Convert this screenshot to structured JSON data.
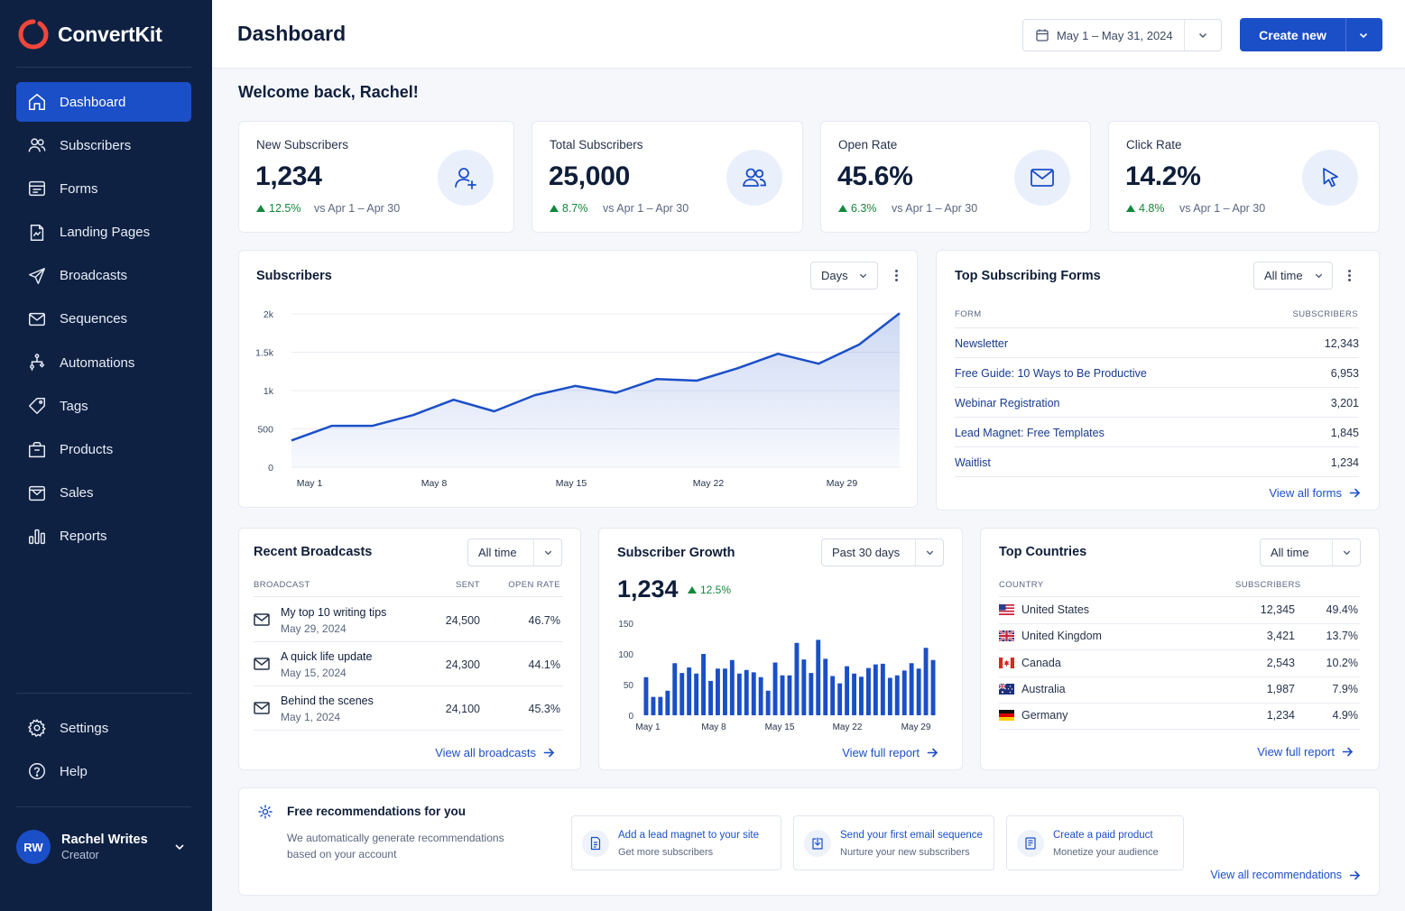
{
  "brand": {
    "name": "ConvertKit"
  },
  "sidebar": {
    "items": [
      {
        "label": "Dashboard",
        "icon": "home-icon",
        "active": true
      },
      {
        "label": "Subscribers",
        "icon": "users-icon"
      },
      {
        "label": "Forms",
        "icon": "form-icon"
      },
      {
        "label": "Landing Pages",
        "icon": "landing-page-icon"
      },
      {
        "label": "Broadcasts",
        "icon": "send-icon"
      },
      {
        "label": "Sequences",
        "icon": "mail-icon"
      },
      {
        "label": "Automations",
        "icon": "automation-icon"
      },
      {
        "label": "Tags",
        "icon": "tag-icon"
      },
      {
        "label": "Products",
        "icon": "product-icon"
      },
      {
        "label": "Sales",
        "icon": "sales-icon"
      },
      {
        "label": "Reports",
        "icon": "chart-icon"
      }
    ],
    "bottom_items": [
      {
        "label": "Settings",
        "icon": "gear-icon"
      },
      {
        "label": "Help",
        "icon": "help-icon"
      }
    ],
    "user": {
      "initials": "RW",
      "name": "Rachel Writes",
      "role": "Creator"
    }
  },
  "header": {
    "title": "Dashboard",
    "date_range": "May 1 – May 31, 2024",
    "create_label": "Create new"
  },
  "welcome": "Welcome back, Rachel!",
  "stats": [
    {
      "label": "New Subscribers",
      "value": "1,234",
      "delta": "12.5%",
      "vs": "vs Apr 1 – Apr 30",
      "icon": "user-plus-icon"
    },
    {
      "label": "Total Subscribers",
      "value": "25,000",
      "delta": "8.7%",
      "vs": "vs Apr 1 – Apr 30",
      "icon": "users-icon"
    },
    {
      "label": "Open Rate",
      "value": "45.6%",
      "delta": "6.3%",
      "vs": "vs Apr 1 – Apr 30",
      "icon": "envelope-icon"
    },
    {
      "label": "Click Rate",
      "value": "14.2%",
      "delta": "4.8%",
      "vs": "vs Apr 1 – Apr 30",
      "icon": "cursor-icon"
    }
  ],
  "subscribers_chart": {
    "title": "Subscribers",
    "period": "Days",
    "accent": "#1b4fc8"
  },
  "top_forms": {
    "title": "Top Subscribing Forms",
    "period": "All time",
    "col_form": "FORM",
    "col_subs": "SUBSCRIBERS",
    "rows": [
      {
        "name": "Newsletter",
        "value": "12,343"
      },
      {
        "name": "Free Guide: 10 Ways to Be Productive",
        "value": "6,953"
      },
      {
        "name": "Webinar Registration",
        "value": "3,201"
      },
      {
        "name": "Lead Magnet: Free Templates",
        "value": "1,845"
      },
      {
        "name": "Waitlist",
        "value": "1,234"
      }
    ],
    "link": "View all forms"
  },
  "recent_broadcasts": {
    "title": "Recent Broadcasts",
    "period": "All time",
    "col_broadcast": "BROADCAST",
    "col_sent": "SENT",
    "col_open": "OPEN RATE",
    "rows": [
      {
        "title": "My top 10 writing tips",
        "date": "May 29, 2024",
        "sent": "24,500",
        "open": "46.7%"
      },
      {
        "title": "A quick life update",
        "date": "May 15, 2024",
        "sent": "24,300",
        "open": "44.1%"
      },
      {
        "title": "Behind the scenes",
        "date": "May 1, 2024",
        "sent": "24,100",
        "open": "45.3%"
      }
    ],
    "link": "View all broadcasts"
  },
  "subscriber_growth": {
    "title": "Subscriber Growth",
    "period": "Past 30 days",
    "value": "1,234",
    "delta": "12.5%",
    "link": "View full report"
  },
  "top_countries": {
    "title": "Top Countries",
    "period": "All time",
    "col_country": "COUNTRY",
    "col_subs": "SUBSCRIBERS",
    "rows": [
      {
        "country": "United States",
        "flag": "us-flag-icon",
        "count": "12,345",
        "pct": "49.4%"
      },
      {
        "country": "United Kingdom",
        "flag": "uk-flag-icon",
        "count": "3,421",
        "pct": "13.7%"
      },
      {
        "country": "Canada",
        "flag": "canada-flag-icon",
        "count": "2,543",
        "pct": "10.2%"
      },
      {
        "country": "Australia",
        "flag": "australia-flag-icon",
        "count": "1,987",
        "pct": "7.9%"
      },
      {
        "country": "Germany",
        "flag": "germany-flag-icon",
        "count": "1,234",
        "pct": "4.9%"
      }
    ],
    "link": "View full report"
  },
  "recommendations": {
    "title": "Free recommendations for you",
    "desc_line1": "We automatically generate recommendations",
    "desc_line2": "based on your account",
    "tiles": [
      {
        "title": "Add a lead magnet to your site",
        "sub": "Get more subscribers",
        "icon": "document-icon"
      },
      {
        "title": "Send your first email sequence",
        "sub": "Nurture your new subscribers",
        "icon": "download-icon"
      },
      {
        "title": "Create a paid product",
        "sub": "Monetize your audience",
        "icon": "receipt-icon"
      }
    ],
    "link": "View all recommendations"
  },
  "chart_data": [
    {
      "type": "area",
      "title": "Subscribers",
      "x": [
        "May 1",
        "May 3",
        "May 5",
        "May 7",
        "May 9",
        "May 11",
        "May 13",
        "May 15",
        "May 17",
        "May 19",
        "May 21",
        "May 23",
        "May 25",
        "May 27",
        "May 29",
        "May 31"
      ],
      "x_tick_labels": [
        "May 1",
        "May 8",
        "May 15",
        "May 22",
        "May 29"
      ],
      "values": [
        350,
        540,
        540,
        680,
        880,
        730,
        940,
        1060,
        970,
        1150,
        1130,
        1290,
        1480,
        1350,
        1600,
        2010
      ],
      "y_tick_labels": [
        "0",
        "500",
        "1k",
        "1.5k",
        "2k"
      ],
      "ylim": [
        0,
        2000
      ],
      "grid": true
    },
    {
      "type": "bar",
      "title": "Subscriber Growth",
      "x_tick_labels": [
        "May 1",
        "May 8",
        "May 15",
        "May 22",
        "May 29"
      ],
      "values": [
        62,
        30,
        30,
        40,
        85,
        69,
        78,
        68,
        100,
        56,
        76,
        76,
        90,
        68,
        74,
        70,
        62,
        40,
        86,
        65,
        65,
        118,
        91,
        69,
        123,
        92,
        64,
        52,
        80,
        68,
        63,
        77,
        83,
        84,
        61,
        65,
        73,
        85,
        76,
        110,
        90
      ],
      "y_tick_labels": [
        "0",
        "50",
        "100",
        "150"
      ],
      "ylim": [
        0,
        150
      ],
      "grid": false
    }
  ]
}
